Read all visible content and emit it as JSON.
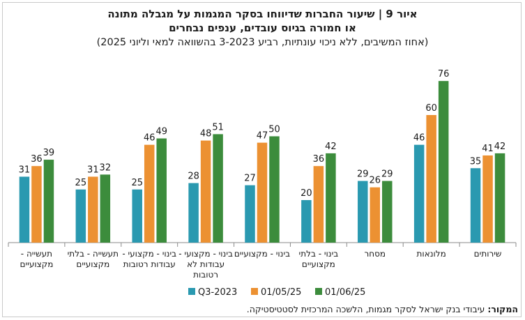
{
  "title": {
    "line1": "איור 9 | שיעור החברות שדיווחו בסקר המגמות על מגבלה מתונה",
    "line2": "או חמורה בגיוס עובדים, ענפים נבחרים",
    "subtitle": "(אחוז המשיבים, ללא ניכוי עונתיות, רביע 3-2023 בהשוואה למאי וליוני 2025)"
  },
  "source": {
    "label": "המקור:",
    "text": "עיבודי בנק ישראל לסקר מגמות, הלשכה המרכזית לסטטיסטיקה."
  },
  "chart_data": {
    "type": "bar",
    "categories": [
      [
        "תעשייה -",
        "מקצועיים"
      ],
      [
        "תעשייה - בלתי",
        "מקצועיים"
      ],
      [
        "בינוי - מקצועי -",
        "עבודות רטובות"
      ],
      [
        "בינוי - מקצועי -",
        "עבודות לא",
        "רטובות"
      ],
      [
        "בינוי - מקצועיים"
      ],
      [
        "בינוי - בלתי",
        "מקצועיים"
      ],
      [
        "מסחר"
      ],
      [
        "מלונאות"
      ],
      [
        "שירותים"
      ]
    ],
    "series": [
      {
        "name": "Q3-2023",
        "color": "#2a99b0",
        "values": [
          31,
          25,
          25,
          28,
          27,
          20,
          29,
          46,
          35
        ]
      },
      {
        "name": "01/05/25",
        "color": "#ec9132",
        "values": [
          36,
          31,
          46,
          48,
          47,
          36,
          26,
          60,
          41
        ]
      },
      {
        "name": "01/06/25",
        "color": "#3c8c3c",
        "values": [
          39,
          32,
          49,
          51,
          50,
          42,
          29,
          76,
          42
        ]
      }
    ],
    "ylim": [
      0,
      80
    ],
    "data_labels": true,
    "legend_position": "bottom",
    "grid": false
  }
}
